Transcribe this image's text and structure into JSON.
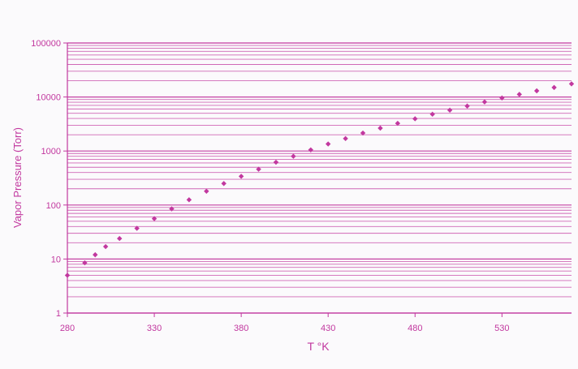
{
  "colors": {
    "accent": "#c2389f",
    "background": "#fbfafc"
  },
  "chart_data": {
    "type": "scatter",
    "title": "",
    "xlabel": "T °K",
    "ylabel": "Vapor Pressure (Torr)",
    "xlim": [
      280,
      570
    ],
    "ylim": [
      1,
      100000
    ],
    "yscale": "log",
    "grid": true,
    "legend": "none",
    "x_ticks": [
      "280",
      "330",
      "380",
      "430",
      "480",
      "530"
    ],
    "y_ticks": [
      "1",
      "10",
      "100",
      "1000",
      "10000",
      "100000"
    ],
    "points": [
      {
        "x": 280,
        "y": 5
      },
      {
        "x": 290,
        "y": 8.5
      },
      {
        "x": 296,
        "y": 12
      },
      {
        "x": 302,
        "y": 17
      },
      {
        "x": 310,
        "y": 24
      },
      {
        "x": 320,
        "y": 37
      },
      {
        "x": 330,
        "y": 56
      },
      {
        "x": 340,
        "y": 85
      },
      {
        "x": 350,
        "y": 125
      },
      {
        "x": 360,
        "y": 180
      },
      {
        "x": 370,
        "y": 250
      },
      {
        "x": 380,
        "y": 340
      },
      {
        "x": 390,
        "y": 460
      },
      {
        "x": 400,
        "y": 620
      },
      {
        "x": 410,
        "y": 800
      },
      {
        "x": 420,
        "y": 1050
      },
      {
        "x": 430,
        "y": 1350
      },
      {
        "x": 440,
        "y": 1700
      },
      {
        "x": 450,
        "y": 2150
      },
      {
        "x": 460,
        "y": 2650
      },
      {
        "x": 470,
        "y": 3250
      },
      {
        "x": 480,
        "y": 3950
      },
      {
        "x": 490,
        "y": 4800
      },
      {
        "x": 500,
        "y": 5700
      },
      {
        "x": 510,
        "y": 6800
      },
      {
        "x": 520,
        "y": 8100
      },
      {
        "x": 530,
        "y": 9600
      },
      {
        "x": 540,
        "y": 11200
      },
      {
        "x": 550,
        "y": 13000
      },
      {
        "x": 560,
        "y": 15000
      },
      {
        "x": 570,
        "y": 17500
      }
    ]
  }
}
